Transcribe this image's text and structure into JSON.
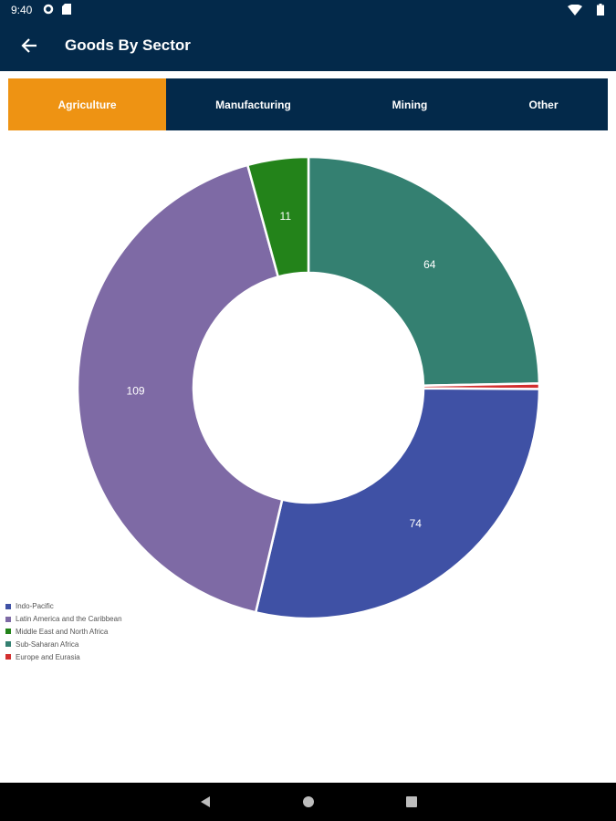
{
  "status_bar": {
    "time": "9:40"
  },
  "app_bar": {
    "title": "Goods By Sector"
  },
  "tabs": [
    {
      "label": "Agriculture",
      "active": true
    },
    {
      "label": "Manufacturing",
      "active": false
    },
    {
      "label": "Mining",
      "active": false
    },
    {
      "label": "Other",
      "active": false
    }
  ],
  "chart_data": {
    "type": "pie",
    "style": "donut",
    "categories": [
      "Sub-Saharan Africa",
      "Europe and Eurasia",
      "Indo-Pacific",
      "Latin America and the Caribbean",
      "Middle East and North Africa"
    ],
    "values": [
      64,
      1,
      74,
      109,
      11
    ],
    "labels": [
      "64",
      "",
      "74",
      "109",
      "11"
    ],
    "colors": [
      "#348071",
      "#d32f2f",
      "#3f51a5",
      "#7e6aa5",
      "#23831a"
    ],
    "legend": [
      {
        "name": "Indo-Pacific",
        "color": "#3f51a5"
      },
      {
        "name": "Latin America and the Caribbean",
        "color": "#7e6aa5"
      },
      {
        "name": "Middle East and North Africa",
        "color": "#23831a"
      },
      {
        "name": "Sub-Saharan Africa",
        "color": "#348071"
      },
      {
        "name": "Europe and Eurasia",
        "color": "#d32f2f"
      }
    ],
    "legend_position": "bottom-left"
  }
}
